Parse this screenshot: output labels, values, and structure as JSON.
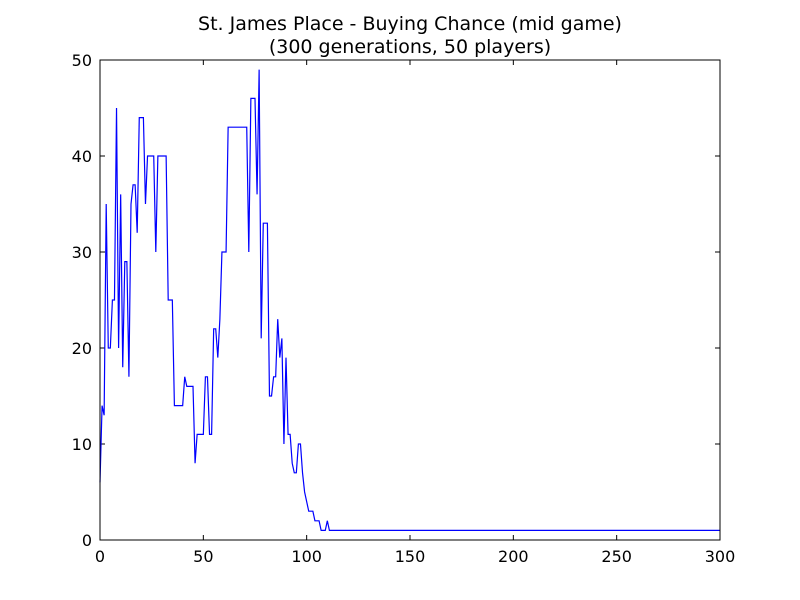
{
  "chart_data": {
    "type": "line",
    "title_line1": "St. James Place - Buying Chance (mid game)",
    "title_line2": "(300 generations, 50 players)",
    "xlabel": "",
    "ylabel": "",
    "xlim": [
      0,
      300
    ],
    "ylim": [
      0,
      50
    ],
    "x_ticks": [
      0,
      50,
      100,
      150,
      200,
      250,
      300
    ],
    "y_ticks": [
      0,
      10,
      20,
      30,
      40,
      50
    ],
    "grid": false,
    "line_color": "#0000ff",
    "points": [
      [
        0,
        6
      ],
      [
        1,
        14
      ],
      [
        2,
        13
      ],
      [
        3,
        35
      ],
      [
        4,
        20
      ],
      [
        5,
        20
      ],
      [
        6,
        25
      ],
      [
        7,
        25
      ],
      [
        8,
        45
      ],
      [
        9,
        20
      ],
      [
        10,
        36
      ],
      [
        11,
        18
      ],
      [
        12,
        29
      ],
      [
        13,
        29
      ],
      [
        14,
        17
      ],
      [
        15,
        35
      ],
      [
        16,
        37
      ],
      [
        17,
        37
      ],
      [
        18,
        32
      ],
      [
        19,
        44
      ],
      [
        20,
        44
      ],
      [
        21,
        44
      ],
      [
        22,
        35
      ],
      [
        23,
        40
      ],
      [
        24,
        40
      ],
      [
        25,
        40
      ],
      [
        26,
        40
      ],
      [
        27,
        30
      ],
      [
        28,
        40
      ],
      [
        29,
        40
      ],
      [
        30,
        40
      ],
      [
        31,
        40
      ],
      [
        32,
        40
      ],
      [
        33,
        25
      ],
      [
        34,
        25
      ],
      [
        35,
        25
      ],
      [
        36,
        14
      ],
      [
        37,
        14
      ],
      [
        38,
        14
      ],
      [
        39,
        14
      ],
      [
        40,
        14
      ],
      [
        41,
        17
      ],
      [
        42,
        16
      ],
      [
        43,
        16
      ],
      [
        44,
        16
      ],
      [
        45,
        16
      ],
      [
        46,
        8
      ],
      [
        47,
        11
      ],
      [
        48,
        11
      ],
      [
        49,
        11
      ],
      [
        50,
        11
      ],
      [
        51,
        17
      ],
      [
        52,
        17
      ],
      [
        53,
        11
      ],
      [
        54,
        11
      ],
      [
        55,
        22
      ],
      [
        56,
        22
      ],
      [
        57,
        19
      ],
      [
        58,
        23
      ],
      [
        59,
        30
      ],
      [
        60,
        30
      ],
      [
        61,
        30
      ],
      [
        62,
        43
      ],
      [
        63,
        43
      ],
      [
        64,
        43
      ],
      [
        65,
        43
      ],
      [
        66,
        43
      ],
      [
        67,
        43
      ],
      [
        68,
        43
      ],
      [
        69,
        43
      ],
      [
        70,
        43
      ],
      [
        71,
        43
      ],
      [
        72,
        30
      ],
      [
        73,
        46
      ],
      [
        74,
        46
      ],
      [
        75,
        46
      ],
      [
        76,
        36
      ],
      [
        77,
        49
      ],
      [
        78,
        21
      ],
      [
        79,
        33
      ],
      [
        80,
        33
      ],
      [
        81,
        33
      ],
      [
        82,
        15
      ],
      [
        83,
        15
      ],
      [
        84,
        17
      ],
      [
        85,
        17
      ],
      [
        86,
        23
      ],
      [
        87,
        19
      ],
      [
        88,
        21
      ],
      [
        89,
        10
      ],
      [
        90,
        19
      ],
      [
        91,
        11
      ],
      [
        92,
        11
      ],
      [
        93,
        8
      ],
      [
        94,
        7
      ],
      [
        95,
        7
      ],
      [
        96,
        10
      ],
      [
        97,
        10
      ],
      [
        98,
        7
      ],
      [
        99,
        5
      ],
      [
        100,
        4
      ],
      [
        101,
        3
      ],
      [
        102,
        3
      ],
      [
        103,
        3
      ],
      [
        104,
        2
      ],
      [
        105,
        2
      ],
      [
        106,
        2
      ],
      [
        107,
        1
      ],
      [
        108,
        1
      ],
      [
        109,
        1
      ],
      [
        110,
        2
      ],
      [
        111,
        1
      ],
      [
        112,
        1
      ],
      [
        150,
        1
      ],
      [
        200,
        1
      ],
      [
        250,
        1
      ],
      [
        300,
        1
      ]
    ]
  }
}
